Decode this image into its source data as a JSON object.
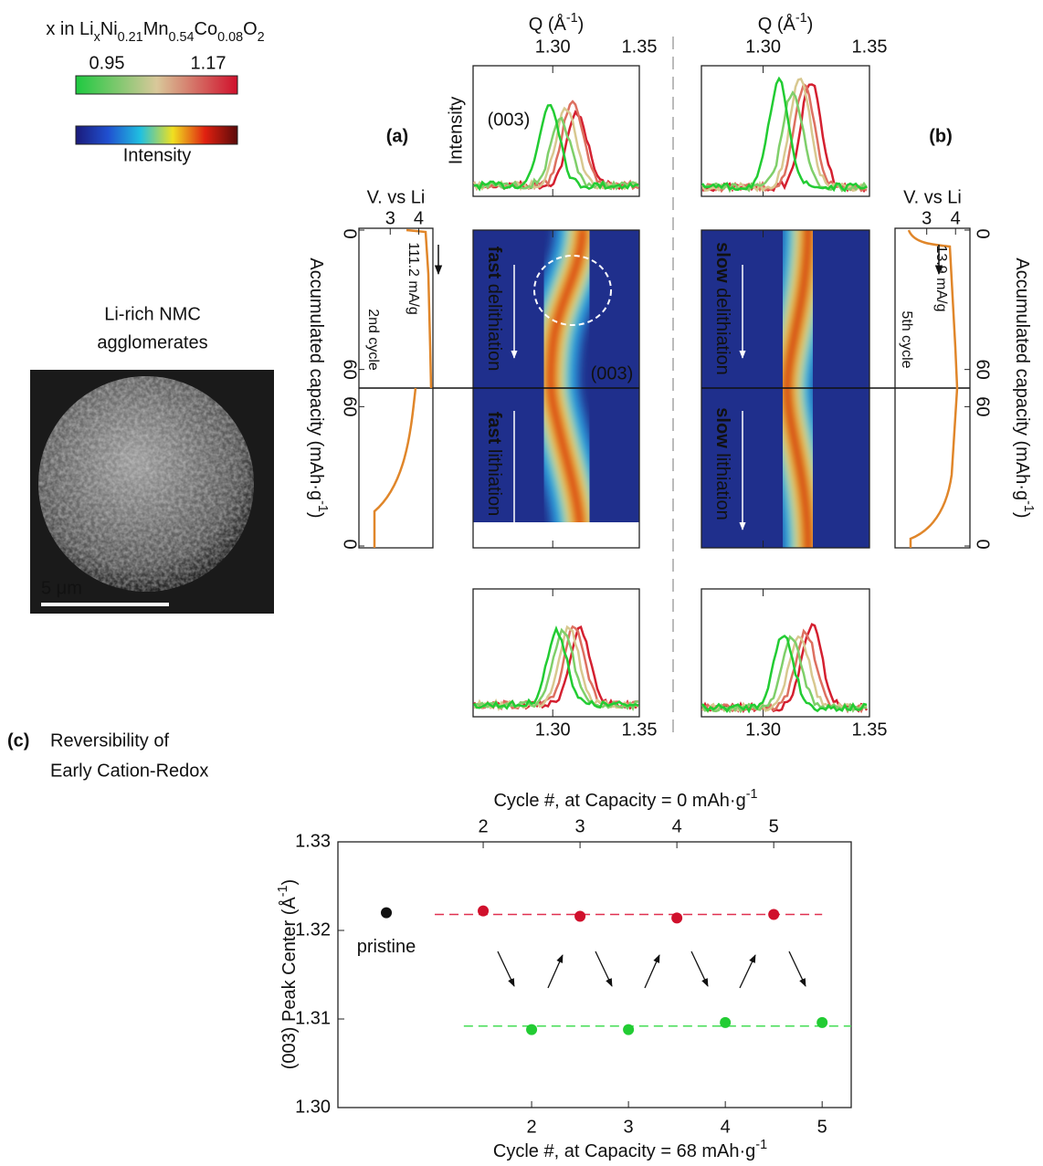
{
  "figure": {
    "composition_colorbar": {
      "label_parts": [
        "x in Li",
        "x",
        "Ni",
        "0.21",
        "Mn",
        "0.54",
        "Co",
        "0.08",
        "O",
        "2"
      ],
      "range": [
        0.95,
        1.17
      ],
      "colors": [
        "#1ec940",
        "#d9c89a",
        "#d0102c"
      ]
    },
    "intensity_colorbar": {
      "label": "Intensity",
      "colors": [
        "#1a1a7a",
        "#2050d0",
        "#20c0e0",
        "#f0e020",
        "#e02010",
        "#5a0a0a"
      ]
    },
    "sem": {
      "title_lines": [
        "Li-rich NMC",
        "agglomerates"
      ],
      "scale_bar": "5 μm"
    },
    "panels": [
      {
        "label": "(a)",
        "q_axis_title": [
          "Q (Å",
          "-1",
          ")"
        ],
        "xlim": [
          1.254,
          1.35
        ],
        "xticks": [
          {
            "value": 1.3,
            "label": "1.30"
          },
          {
            "value": 1.35,
            "label": "1.35"
          }
        ],
        "intensity_label": "Intensity",
        "peak_label": "(003)",
        "map_peak_label": "(003)",
        "map_labels": [
          [
            "fast",
            " delithiation"
          ],
          [
            "fast",
            " lithiation"
          ]
        ],
        "voltage": {
          "title": "V. vs Li",
          "xlim": [
            1.9,
            4.5
          ],
          "xticks": [
            3,
            4
          ],
          "rate": "111.2 mA/g",
          "cycle": "2nd cycle"
        },
        "capacity": {
          "title_parts": [
            "Accumulated capacity (mAh·g",
            "-1",
            ")"
          ],
          "ylim": [
            0,
            68
          ],
          "yticks": [
            0,
            60
          ]
        }
      },
      {
        "label": "(b)",
        "q_axis_title": [
          "Q (Å",
          "-1",
          ")"
        ],
        "xlim": [
          1.271,
          1.35
        ],
        "xticks": [
          {
            "value": 1.3,
            "label": "1.30"
          },
          {
            "value": 1.35,
            "label": "1.35"
          }
        ],
        "map_labels": [
          [
            "slow",
            " delithiation"
          ],
          [
            "slow",
            " lithiation"
          ]
        ],
        "voltage": {
          "title": "V. vs Li",
          "xlim": [
            1.9,
            4.5
          ],
          "xticks": [
            3,
            4
          ],
          "rate": "13.9 mA/g",
          "cycle": "5th cycle"
        },
        "capacity": {
          "title_parts": [
            "Accumulated capacity (mAh·g",
            "-1",
            ")"
          ],
          "ylim": [
            0,
            68
          ],
          "yticks": [
            0,
            60
          ]
        }
      }
    ]
  },
  "chart_data": {
    "type": "scatter",
    "label": "(c)",
    "title_lines": [
      "Reversibility of",
      "Early Cation-Redox"
    ],
    "xlabel_parts": [
      "Cycle #, at Capacity = 68 mAh·g",
      "-1"
    ],
    "x2label_parts": [
      "Cycle #, at Capacity = 0 mAh·g",
      "-1"
    ],
    "ylabel_parts": [
      "(003) Peak Center (Å",
      "-1",
      ")"
    ],
    "xlim": [
      0,
      5.3
    ],
    "xticks": [
      2,
      3,
      4,
      5
    ],
    "x2lim": [
      0.5,
      5.8
    ],
    "x2ticks": [
      2,
      3,
      4,
      5
    ],
    "ylim": [
      1.3,
      1.33
    ],
    "yticks": [
      {
        "value": 1.3,
        "label": "1.30"
      },
      {
        "value": 1.31,
        "label": "1.31"
      },
      {
        "value": 1.32,
        "label": "1.32"
      },
      {
        "value": 1.33,
        "label": "1.33"
      }
    ],
    "annotation": "pristine",
    "series": [
      {
        "color": "#111111",
        "x": [
          0.5
        ],
        "values": [
          1.322
        ]
      },
      {
        "color": "#d0102c",
        "axis": "x2",
        "x": [
          2,
          3,
          4,
          5
        ],
        "values": [
          1.3222,
          1.3216,
          1.3214,
          1.3218
        ]
      },
      {
        "color": "#22cc33",
        "x": [
          2,
          3,
          4,
          5
        ],
        "values": [
          1.3088,
          1.3088,
          1.3096,
          1.3096
        ]
      }
    ],
    "fit_lines": [
      {
        "color": "#e03050",
        "x": [
          1,
          5
        ],
        "values": [
          1.3218,
          1.3218
        ]
      },
      {
        "color": "#44dd55",
        "x": [
          1.3,
          5.3
        ],
        "values": [
          1.3092,
          1.3092
        ]
      }
    ]
  }
}
